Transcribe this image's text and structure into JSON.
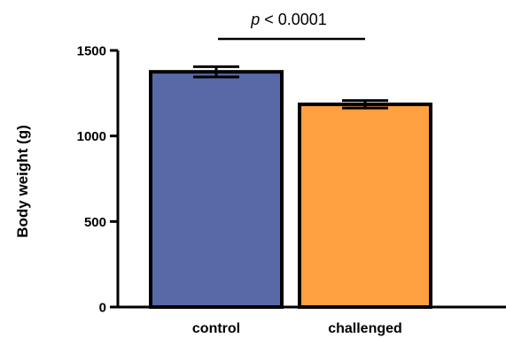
{
  "chart_data": {
    "type": "bar",
    "title": "",
    "xlabel": "",
    "ylabel": "Body weight (g)",
    "categories": [
      "control",
      "challenged"
    ],
    "values": [
      1375,
      1185
    ],
    "error": [
      30,
      22
    ],
    "colors": [
      "#5869a8",
      "#ffa040"
    ],
    "ylim": [
      0,
      1500
    ],
    "yticks": [
      "0",
      "500",
      "1000",
      "1500"
    ],
    "grid": false,
    "annotation": {
      "p_symbol": "p",
      "text": " < 0.0001",
      "between": [
        "control",
        "challenged"
      ]
    }
  }
}
